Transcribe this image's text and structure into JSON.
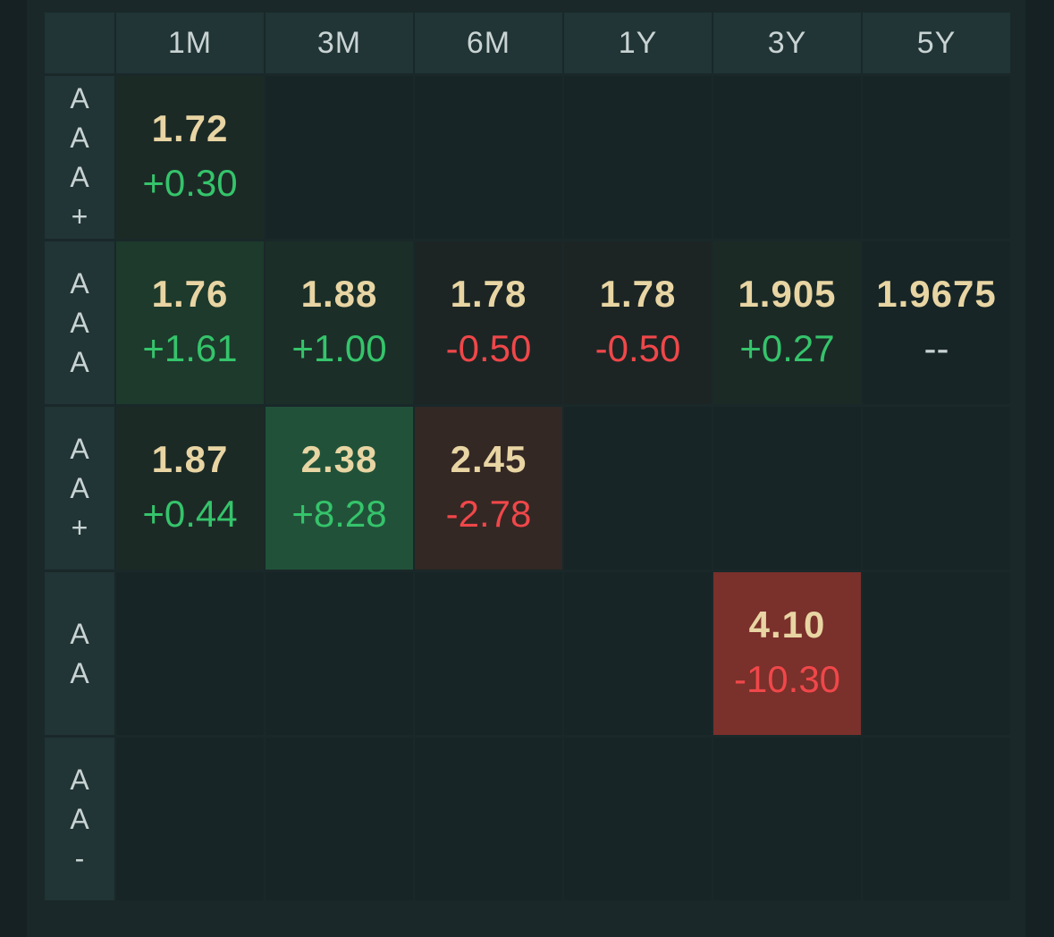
{
  "columns": [
    "1M",
    "3M",
    "6M",
    "1Y",
    "3Y",
    "5Y"
  ],
  "rows": [
    {
      "label_chars": [
        "A",
        "A",
        "A",
        "+"
      ],
      "cells": [
        {
          "rate": "1.72",
          "change": "+0.30",
          "dir": "up",
          "bg": "#1c2a26"
        },
        {
          "rate": "",
          "change": "",
          "dir": "",
          "bg": "#172526"
        },
        {
          "rate": "",
          "change": "",
          "dir": "",
          "bg": "#172526"
        },
        {
          "rate": "",
          "change": "",
          "dir": "",
          "bg": "#172526"
        },
        {
          "rate": "",
          "change": "",
          "dir": "",
          "bg": "#172526"
        },
        {
          "rate": "",
          "change": "",
          "dir": "",
          "bg": "#172526"
        }
      ]
    },
    {
      "label_chars": [
        "A",
        "A",
        "A"
      ],
      "cells": [
        {
          "rate": "1.76",
          "change": "+1.61",
          "dir": "up",
          "bg": "#1d3a2c"
        },
        {
          "rate": "1.88",
          "change": "+1.00",
          "dir": "up",
          "bg": "#1b2f28"
        },
        {
          "rate": "1.78",
          "change": "-0.50",
          "dir": "down",
          "bg": "#1c2524"
        },
        {
          "rate": "1.78",
          "change": "-0.50",
          "dir": "down",
          "bg": "#1c2524"
        },
        {
          "rate": "1.905",
          "change": "+0.27",
          "dir": "up",
          "bg": "#1c2a26"
        },
        {
          "rate": "1.9675",
          "change": "--",
          "dir": "flat",
          "bg": "#172526"
        }
      ]
    },
    {
      "label_chars": [
        "A",
        "A",
        "+"
      ],
      "cells": [
        {
          "rate": "1.87",
          "change": "+0.44",
          "dir": "up",
          "bg": "#1c2a26"
        },
        {
          "rate": "2.38",
          "change": "+8.28",
          "dir": "up",
          "bg": "#215239"
        },
        {
          "rate": "2.45",
          "change": "-2.78",
          "dir": "down",
          "bg": "#332824"
        },
        {
          "rate": "",
          "change": "",
          "dir": "",
          "bg": "#172526"
        },
        {
          "rate": "",
          "change": "",
          "dir": "",
          "bg": "#172526"
        },
        {
          "rate": "",
          "change": "",
          "dir": "",
          "bg": "#172526"
        }
      ]
    },
    {
      "label_chars": [
        "A",
        "A"
      ],
      "cells": [
        {
          "rate": "",
          "change": "",
          "dir": "",
          "bg": "#172526"
        },
        {
          "rate": "",
          "change": "",
          "dir": "",
          "bg": "#172526"
        },
        {
          "rate": "",
          "change": "",
          "dir": "",
          "bg": "#172526"
        },
        {
          "rate": "",
          "change": "",
          "dir": "",
          "bg": "#172526"
        },
        {
          "rate": "4.10",
          "change": "-10.30",
          "dir": "down",
          "bg": "#7a302b"
        },
        {
          "rate": "",
          "change": "",
          "dir": "",
          "bg": "#172526"
        }
      ]
    },
    {
      "label_chars": [
        "A",
        "A",
        "-"
      ],
      "cells": [
        {
          "rate": "",
          "change": "",
          "dir": "",
          "bg": "#172526"
        },
        {
          "rate": "",
          "change": "",
          "dir": "",
          "bg": "#172526"
        },
        {
          "rate": "",
          "change": "",
          "dir": "",
          "bg": "#172526"
        },
        {
          "rate": "",
          "change": "",
          "dir": "",
          "bg": "#172526"
        },
        {
          "rate": "",
          "change": "",
          "dir": "",
          "bg": "#172526"
        },
        {
          "rate": "",
          "change": "",
          "dir": "",
          "bg": "#172526"
        }
      ]
    }
  ]
}
